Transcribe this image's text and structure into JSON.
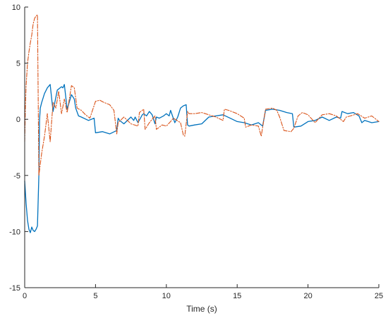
{
  "chart_data": {
    "type": "line",
    "title": "",
    "xlabel": "Time (s)",
    "ylabel": "",
    "xlim": [
      0,
      25
    ],
    "ylim": [
      -15,
      10
    ],
    "xticks": [
      0,
      5,
      10,
      15,
      20,
      25
    ],
    "yticks": [
      -15,
      -10,
      -5,
      0,
      5,
      10
    ],
    "xtick_labels": [
      "0",
      "5",
      "10",
      "15",
      "20",
      "25"
    ],
    "ytick_labels": [
      "-15",
      "-10",
      "-5",
      "0",
      "5",
      "10"
    ],
    "grid": false,
    "legend": "none",
    "series": [
      {
        "color": "#0072BD",
        "dash": "solid",
        "x": [
          0,
          0.1,
          0.2,
          0.3,
          0.4,
          0.5,
          0.6,
          0.7,
          0.8,
          0.9,
          1.0,
          1.05,
          1.1,
          1.2,
          1.4,
          1.6,
          1.8,
          2.0,
          2.3,
          2.6,
          2.7,
          2.8,
          3.0,
          3.3,
          3.5,
          3.6,
          3.8,
          4.0,
          4.5,
          4.9,
          5.0,
          5.5,
          6.0,
          6.5,
          6.6,
          6.7,
          7.0,
          7.5,
          7.7,
          7.8,
          8.0,
          8.3,
          8.4,
          8.6,
          8.8,
          9.0,
          9.2,
          9.3,
          9.5,
          9.8,
          10.0,
          10.2,
          10.3,
          10.6,
          10.8,
          11.0,
          11.2,
          11.4,
          11.5,
          11.6,
          12.0,
          12.5,
          13.0,
          13.5,
          14.0,
          14.5,
          15.0,
          15.5,
          16.0,
          16.5,
          16.7,
          16.8,
          17.0,
          17.5,
          18.0,
          18.5,
          18.9,
          19.0,
          19.5,
          20.0,
          20.5,
          21.0,
          21.5,
          22.0,
          22.3,
          22.4,
          22.8,
          23.2,
          23.6,
          23.8,
          24.0,
          24.5,
          25.0
        ],
        "y": [
          -5.5,
          -7.5,
          -9,
          -9.8,
          -10.1,
          -9.6,
          -9.9,
          -10.0,
          -9.8,
          -9.5,
          -5.0,
          0,
          1.0,
          1.5,
          2.3,
          2.8,
          3.1,
          0.7,
          2.6,
          2.9,
          2.8,
          3.1,
          0.9,
          2.2,
          1.8,
          1.0,
          0.3,
          0.2,
          -0.1,
          0.1,
          -1.2,
          -1.1,
          -1.3,
          -1.0,
          0.1,
          -0.1,
          -0.4,
          0.2,
          -0.1,
          0.2,
          -0.3,
          0.4,
          0.5,
          0.3,
          0.7,
          0.4,
          -0.4,
          0.2,
          0.1,
          0.3,
          0.5,
          0.3,
          0.8,
          -0.3,
          0.2,
          1.0,
          1.2,
          1.3,
          -0.5,
          -0.6,
          -0.5,
          -0.4,
          0.2,
          0.3,
          0.4,
          0.1,
          -0.2,
          -0.3,
          -0.5,
          -0.3,
          -0.5,
          -0.6,
          0.8,
          0.9,
          0.8,
          0.6,
          0.5,
          -0.7,
          -0.6,
          -0.2,
          -0.1,
          0.2,
          -0.1,
          0.2,
          0.1,
          0.7,
          0.5,
          0.6,
          0.3,
          -0.3,
          -0.1,
          -0.3,
          -0.2
        ]
      },
      {
        "color": "#D95319",
        "dash": "dashdot",
        "x": [
          0,
          0.05,
          0.1,
          0.2,
          0.3,
          0.4,
          0.5,
          0.6,
          0.7,
          0.8,
          0.9,
          1.0,
          1.05,
          1.2,
          1.4,
          1.6,
          1.8,
          2.0,
          2.2,
          2.4,
          2.6,
          2.8,
          3.0,
          3.3,
          3.5,
          3.7,
          4.0,
          4.3,
          4.6,
          5.0,
          5.3,
          5.6,
          6.0,
          6.3,
          6.5,
          6.6,
          7.0,
          7.5,
          8.0,
          8.1,
          8.4,
          8.5,
          8.8,
          9.2,
          9.3,
          9.7,
          10.0,
          10.3,
          10.5,
          11.0,
          11.2,
          11.3,
          11.5,
          11.6,
          12.0,
          12.5,
          13.0,
          13.5,
          14.0,
          14.1,
          14.4,
          15.0,
          15.5,
          15.6,
          16.0,
          16.5,
          16.7,
          17.0,
          17.5,
          17.8,
          18.0,
          18.3,
          18.8,
          19.0,
          19.3,
          19.6,
          20.0,
          20.5,
          21.0,
          21.5,
          22.0,
          22.5,
          22.7,
          23.0,
          23.5,
          24.0,
          24.5,
          25.0
        ],
        "y": [
          -2,
          1,
          3,
          5,
          6,
          6.8,
          7.5,
          8.5,
          9.0,
          9.2,
          9.3,
          -5.0,
          -4.5,
          -3.0,
          -1.5,
          0.5,
          -2.0,
          1.5,
          1.0,
          2.5,
          0.5,
          1.8,
          0.6,
          3.0,
          2.8,
          1.0,
          0.8,
          0.4,
          0.1,
          1.6,
          1.7,
          1.5,
          1.3,
          0.8,
          -1.3,
          -0.3,
          0.2,
          -0.4,
          -0.6,
          0.6,
          0.9,
          -0.9,
          -0.3,
          0.3,
          -0.9,
          -0.5,
          -0.6,
          -0.2,
          0.1,
          -0.3,
          -1.4,
          -1.5,
          0.7,
          0.5,
          0.5,
          0.6,
          0.4,
          0.2,
          -0.1,
          0.9,
          0.8,
          0.5,
          0.1,
          -0.7,
          -0.5,
          -0.6,
          -1.5,
          0.9,
          1.0,
          0.8,
          0.2,
          -1.0,
          -1.1,
          -0.8,
          0.3,
          0.6,
          0.4,
          -0.3,
          0.4,
          0.5,
          0.3,
          -0.2,
          0.2,
          0.3,
          0.5,
          0.1,
          0.3,
          -0.2
        ]
      }
    ]
  }
}
